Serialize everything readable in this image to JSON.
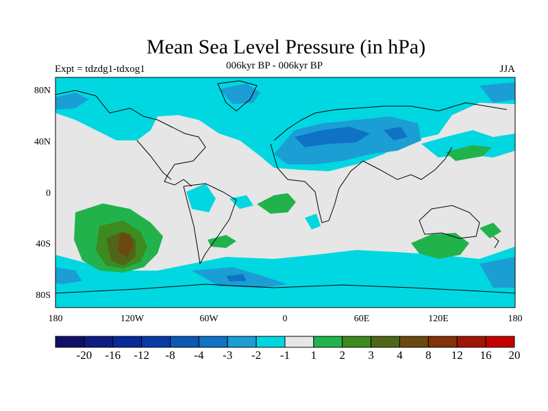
{
  "title": "Mean Sea Level Pressure (in hPa)",
  "subtitle": "006kyr BP - 006kyr BP",
  "expt_label": "Expt = tdzdg1-tdxog1",
  "season": "JJA",
  "axes": {
    "lon_ticks": [
      "180",
      "120W",
      "60W",
      "0",
      "60E",
      "120E",
      "180"
    ],
    "lat_ticks": [
      "80N",
      "40N",
      "0",
      "40S",
      "80S"
    ]
  },
  "colorbar": {
    "labels": [
      "-20",
      "-16",
      "-12",
      "-8",
      "-4",
      "-3",
      "-2",
      "-1",
      "1",
      "2",
      "3",
      "4",
      "8",
      "12",
      "16",
      "20"
    ],
    "colors": [
      "#10106a",
      "#0c1d82",
      "#08299a",
      "#0a3aa8",
      "#0b57b4",
      "#0f72c4",
      "#1b9ed3",
      "#00d7e1",
      "#e6e6e6",
      "#22b24c",
      "#3d8a1e",
      "#4f661a",
      "#6a4a10",
      "#833106",
      "#9f1604",
      "#c40000"
    ]
  }
}
